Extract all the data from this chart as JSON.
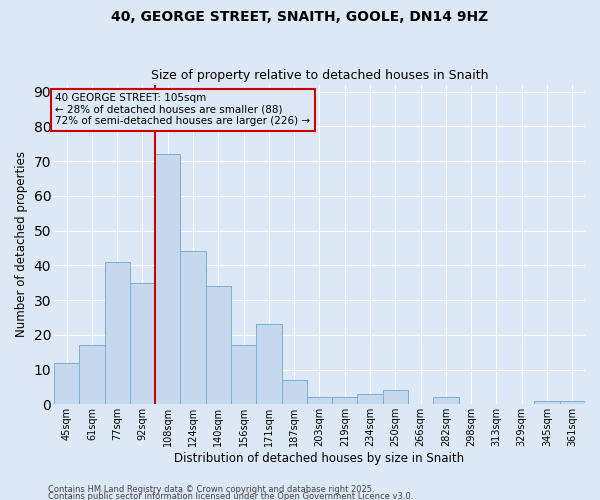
{
  "title_line1": "40, GEORGE STREET, SNAITH, GOOLE, DN14 9HZ",
  "title_line2": "Size of property relative to detached houses in Snaith",
  "xlabel": "Distribution of detached houses by size in Snaith",
  "ylabel": "Number of detached properties",
  "categories": [
    "45sqm",
    "61sqm",
    "77sqm",
    "92sqm",
    "108sqm",
    "124sqm",
    "140sqm",
    "156sqm",
    "171sqm",
    "187sqm",
    "203sqm",
    "219sqm",
    "234sqm",
    "250sqm",
    "266sqm",
    "282sqm",
    "298sqm",
    "313sqm",
    "329sqm",
    "345sqm",
    "361sqm"
  ],
  "values": [
    12,
    17,
    41,
    35,
    72,
    44,
    34,
    17,
    23,
    7,
    2,
    2,
    3,
    4,
    0,
    2,
    0,
    0,
    0,
    1,
    1
  ],
  "bar_color": "#c5d8ee",
  "bar_edge_color": "#7aafd4",
  "vline_x_index": 3.5,
  "vline_color": "#cc0000",
  "annotation_text": "40 GEORGE STREET: 105sqm\n← 28% of detached houses are smaller (88)\n72% of semi-detached houses are larger (226) →",
  "annotation_box_color": "#cc0000",
  "ylim": [
    0,
    92
  ],
  "yticks": [
    0,
    10,
    20,
    30,
    40,
    50,
    60,
    70,
    80,
    90
  ],
  "background_color": "#dce8f5",
  "grid_color": "#ffffff",
  "footer_line1": "Contains HM Land Registry data © Crown copyright and database right 2025.",
  "footer_line2": "Contains public sector information licensed under the Open Government Licence v3.0."
}
